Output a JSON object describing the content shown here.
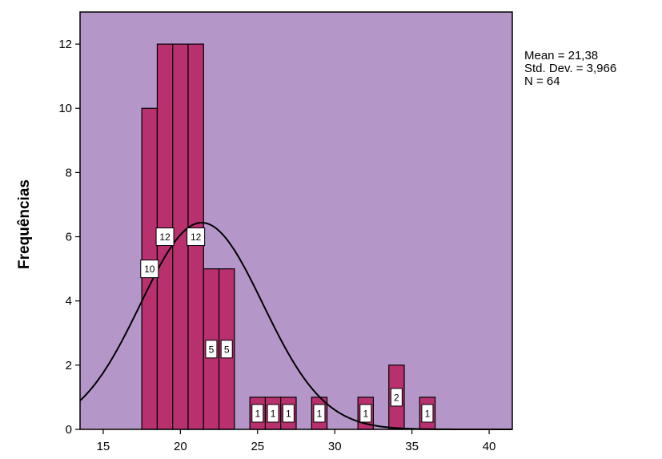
{
  "chart_data": {
    "type": "bar",
    "ylabel": "Frequências",
    "xlabel": "",
    "xlim": [
      13.5,
      41.5
    ],
    "ylim": [
      0,
      13
    ],
    "xticks": [
      "15",
      "20",
      "25",
      "30",
      "35",
      "40"
    ],
    "yticks": [
      "0",
      "2",
      "4",
      "6",
      "8",
      "10",
      "12"
    ],
    "grid": false,
    "bin_width": 1,
    "bars": [
      {
        "x_start": 17.5,
        "value": 10
      },
      {
        "x_start": 18.5,
        "value": 12
      },
      {
        "x_start": 19.5,
        "value": 12
      },
      {
        "x_start": 20.5,
        "value": 12
      },
      {
        "x_start": 21.5,
        "value": 5
      },
      {
        "x_start": 22.5,
        "value": 5
      },
      {
        "x_start": 24.5,
        "value": 1
      },
      {
        "x_start": 25.5,
        "value": 1
      },
      {
        "x_start": 26.5,
        "value": 1
      },
      {
        "x_start": 28.5,
        "value": 1
      },
      {
        "x_start": 31.5,
        "value": 1
      },
      {
        "x_start": 33.5,
        "value": 2
      },
      {
        "x_start": 35.5,
        "value": 1
      }
    ],
    "data_labels": [
      {
        "x": 18.0,
        "y": 5,
        "text": "10"
      },
      {
        "x": 19.0,
        "y": 6,
        "text": "12"
      },
      {
        "x": 21.0,
        "y": 6,
        "text": "12"
      },
      {
        "x": 22.0,
        "y": 2.5,
        "text": "5"
      },
      {
        "x": 23.0,
        "y": 2.5,
        "text": "5"
      },
      {
        "x": 25.0,
        "y": 0.5,
        "text": "1"
      },
      {
        "x": 26.0,
        "y": 0.5,
        "text": "1"
      },
      {
        "x": 27.0,
        "y": 0.5,
        "text": "1"
      },
      {
        "x": 29.0,
        "y": 0.5,
        "text": "1"
      },
      {
        "x": 32.0,
        "y": 0.5,
        "text": "1"
      },
      {
        "x": 34.0,
        "y": 1,
        "text": "2"
      },
      {
        "x": 36.0,
        "y": 0.5,
        "text": "1"
      }
    ],
    "normal_curve": {
      "mean": 21.38,
      "std_dev": 3.966,
      "n": 64
    },
    "colors": {
      "plot_background": "#b497c8",
      "bar_fill": "#b8306e",
      "bar_stroke": "#000000",
      "curve": "#000000"
    },
    "stats_text": [
      "Mean = 21,38",
      "Std. Dev. = 3,966",
      "N = 64"
    ]
  }
}
